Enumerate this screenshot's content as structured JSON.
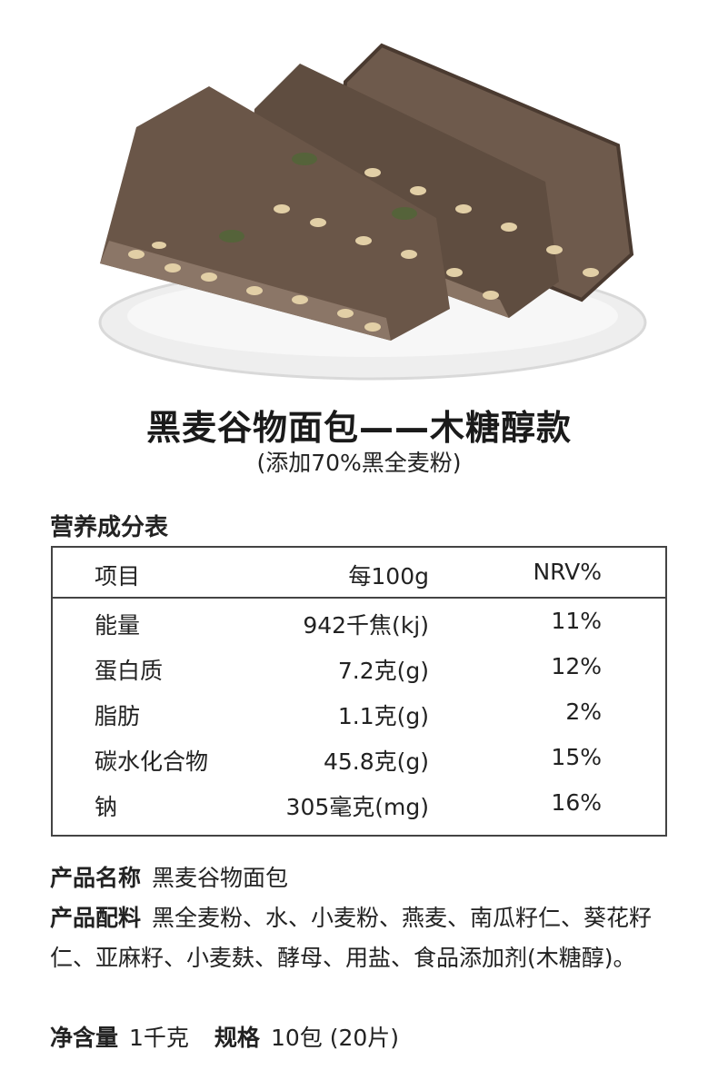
{
  "product": {
    "title": "黑麦谷物面包——木糖醇款",
    "subtitle": "(添加70%黑全麦粉)"
  },
  "nutrition": {
    "heading": "营养成分表",
    "headers": [
      "项目",
      "每100g",
      "NRV%"
    ],
    "rows": [
      {
        "item": "能量",
        "per100g": "942千焦(kj)",
        "nrv": "11%"
      },
      {
        "item": "蛋白质",
        "per100g": "7.2克(g)",
        "nrv": "12%"
      },
      {
        "item": "脂肪",
        "per100g": "1.1克(g)",
        "nrv": "2%"
      },
      {
        "item": "碳水化合物",
        "per100g": "45.8克(g)",
        "nrv": "15%"
      },
      {
        "item": "钠",
        "per100g": "305毫克(mg)",
        "nrv": "16%"
      }
    ]
  },
  "info": {
    "name_label": "产品名称",
    "name_value": "黑麦谷物面包",
    "ingredients_label": "产品配料",
    "ingredients_value": "黑全麦粉、水、小麦粉、燕麦、南瓜籽仁、葵花籽仁、亚麻籽、小麦麸、酵母、用盐、食品添加剂(木糖醇)。",
    "net_label": "净含量",
    "net_value": "1千克",
    "spec_label": "规格",
    "spec_value": "10包 (20片)"
  }
}
